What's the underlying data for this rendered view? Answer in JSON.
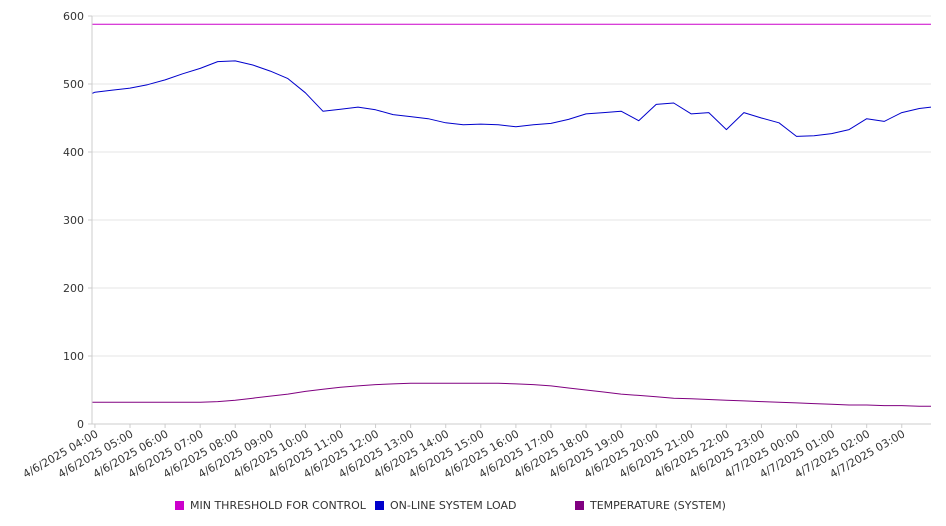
{
  "chart_data": {
    "type": "line",
    "title": "",
    "xlabel": "",
    "ylabel": "",
    "ylim": [
      0,
      600
    ],
    "yticks": [
      0,
      100,
      200,
      300,
      400,
      500,
      600
    ],
    "grid": true,
    "legend_position": "bottom",
    "x_tick_labels": [
      "4/6/2025 04:00",
      "4/6/2025 05:00",
      "4/6/2025 06:00",
      "4/6/2025 07:00",
      "4/6/2025 08:00",
      "4/6/2025 09:00",
      "4/6/2025 10:00",
      "4/6/2025 11:00",
      "4/6/2025 12:00",
      "4/6/2025 13:00",
      "4/6/2025 14:00",
      "4/6/2025 15:00",
      "4/6/2025 16:00",
      "4/6/2025 17:00",
      "4/6/2025 18:00",
      "4/6/2025 19:00",
      "4/6/2025 20:00",
      "4/6/2025 21:00",
      "4/6/2025 22:00",
      "4/6/2025 23:00",
      "4/7/2025 00:00",
      "4/7/2025 01:00",
      "4/7/2025 02:00",
      "4/7/2025 03:00"
    ],
    "x": [
      "4/6/2025 03:55",
      "4/6/2025 04:00",
      "4/6/2025 04:30",
      "4/6/2025 05:00",
      "4/6/2025 05:30",
      "4/6/2025 06:00",
      "4/6/2025 06:30",
      "4/6/2025 07:00",
      "4/6/2025 07:30",
      "4/6/2025 08:00",
      "4/6/2025 08:30",
      "4/6/2025 09:00",
      "4/6/2025 09:30",
      "4/6/2025 10:00",
      "4/6/2025 10:30",
      "4/6/2025 11:00",
      "4/6/2025 11:30",
      "4/6/2025 12:00",
      "4/6/2025 12:30",
      "4/6/2025 13:00",
      "4/6/2025 13:30",
      "4/6/2025 14:00",
      "4/6/2025 14:30",
      "4/6/2025 15:00",
      "4/6/2025 15:30",
      "4/6/2025 16:00",
      "4/6/2025 16:30",
      "4/6/2025 17:00",
      "4/6/2025 17:30",
      "4/6/2025 18:00",
      "4/6/2025 18:30",
      "4/6/2025 19:00",
      "4/6/2025 19:30",
      "4/6/2025 20:00",
      "4/6/2025 20:30",
      "4/6/2025 21:00",
      "4/6/2025 21:30",
      "4/6/2025 22:00",
      "4/6/2025 22:30",
      "4/6/2025 23:00",
      "4/6/2025 23:30",
      "4/7/2025 00:00",
      "4/7/2025 00:30",
      "4/7/2025 01:00",
      "4/7/2025 01:30",
      "4/7/2025 02:00",
      "4/7/2025 02:30",
      "4/7/2025 03:00",
      "4/7/2025 03:30",
      "4/7/2025 03:50"
    ],
    "series": [
      {
        "name": "MIN THRESHOLD FOR CONTROL",
        "color": "#cc00cc",
        "values": [
          588,
          588,
          588,
          588,
          588,
          588,
          588,
          588,
          588,
          588,
          588,
          588,
          588,
          588,
          588,
          588,
          588,
          588,
          588,
          588,
          588,
          588,
          588,
          588,
          588,
          588,
          588,
          588,
          588,
          588,
          588,
          588,
          588,
          588,
          588,
          588,
          588,
          588,
          588,
          588,
          588,
          588,
          588,
          588,
          588,
          588,
          588,
          588,
          588,
          588
        ]
      },
      {
        "name": "ON-LINE SYSTEM LOAD",
        "color": "#0000cc",
        "values": [
          486,
          488,
          491,
          494,
          499,
          506,
          515,
          523,
          533,
          534,
          528,
          519,
          508,
          487,
          460,
          463,
          466,
          462,
          455,
          452,
          449,
          443,
          440,
          441,
          440,
          437,
          440,
          442,
          448,
          456,
          458,
          460,
          446,
          470,
          472,
          456,
          458,
          433,
          458,
          450,
          443,
          423,
          424,
          427,
          433,
          449,
          445,
          458,
          464,
          466
        ]
      },
      {
        "name": "TEMPERATURE (SYSTEM)",
        "color": "#800080",
        "values": [
          32,
          32,
          32,
          32,
          32,
          32,
          32,
          32,
          33,
          35,
          38,
          41,
          44,
          48,
          51,
          54,
          56,
          58,
          59,
          60,
          60,
          60,
          60,
          60,
          60,
          59,
          58,
          56,
          53,
          50,
          47,
          44,
          42,
          40,
          38,
          37,
          36,
          35,
          34,
          33,
          32,
          31,
          30,
          29,
          28,
          28,
          27,
          27,
          26,
          26
        ]
      }
    ]
  }
}
